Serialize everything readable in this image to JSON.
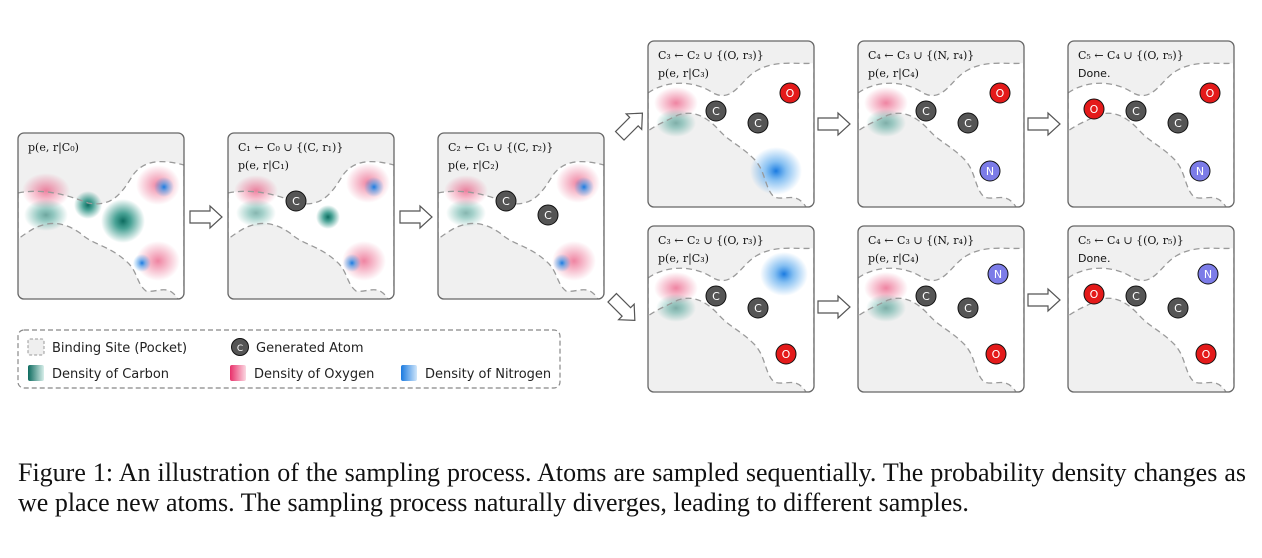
{
  "panels": [
    {
      "id": "p0",
      "lines": [
        "p(e, r|C₀)"
      ],
      "done": false
    },
    {
      "id": "p1",
      "lines": [
        "C₁ ← C₀ ∪ {(C, r₁)}",
        "p(e, r|C₁)"
      ],
      "done": false
    },
    {
      "id": "p2",
      "lines": [
        "C₂ ← C₁ ∪ {(C, r₂)}",
        "p(e, r|C₂)"
      ],
      "done": false
    },
    {
      "id": "p3a",
      "lines": [
        "C₃ ← C₂ ∪ {(O, r₃)}",
        "p(e, r|C₃)"
      ],
      "done": false
    },
    {
      "id": "p4a",
      "lines": [
        "C₄ ← C₃ ∪ {(N, r₄)}",
        "p(e, r|C₄)"
      ],
      "done": false
    },
    {
      "id": "p5a",
      "lines": [
        "C₅ ← C₄ ∪ {(O, r₅)}",
        "Done."
      ],
      "done": true
    },
    {
      "id": "p3b",
      "lines": [
        "C₃ ← C₂ ∪ {(O, r₃)}",
        "p(e, r|C₃)"
      ],
      "done": false
    },
    {
      "id": "p4b",
      "lines": [
        "C₄ ← C₃ ∪ {(N, r₄)}",
        "p(e, r|C₄)"
      ],
      "done": false
    },
    {
      "id": "p5b",
      "lines": [
        "C₅ ← C₄ ∪ {(O, r₅)}",
        "Done."
      ],
      "done": true
    }
  ],
  "atoms": {
    "carbon": "C",
    "oxygen": "O",
    "nitrogen": "N"
  },
  "legend": {
    "binding_site": "Binding Site (Pocket)",
    "generated_atom": "Generated Atom",
    "carbon_density": "Density of Carbon",
    "oxygen_density": "Density of Oxygen",
    "nitrogen_density": "Density of Nitrogen"
  },
  "colors": {
    "carbon": "#1a8a7a",
    "oxygen": "#e8507a",
    "nitrogen": "#2a8ae0",
    "atom_o_fill": "#e41a1a",
    "atom_n_fill": "#7c7ce8",
    "atom_c_fill": "#555555",
    "panel_bg": "#efefef"
  },
  "caption": "Figure 1: An illustration of the sampling process. Atoms are sampled sequentially. The probability density changes as we place new atoms. The sampling process naturally diverges, leading to different samples."
}
